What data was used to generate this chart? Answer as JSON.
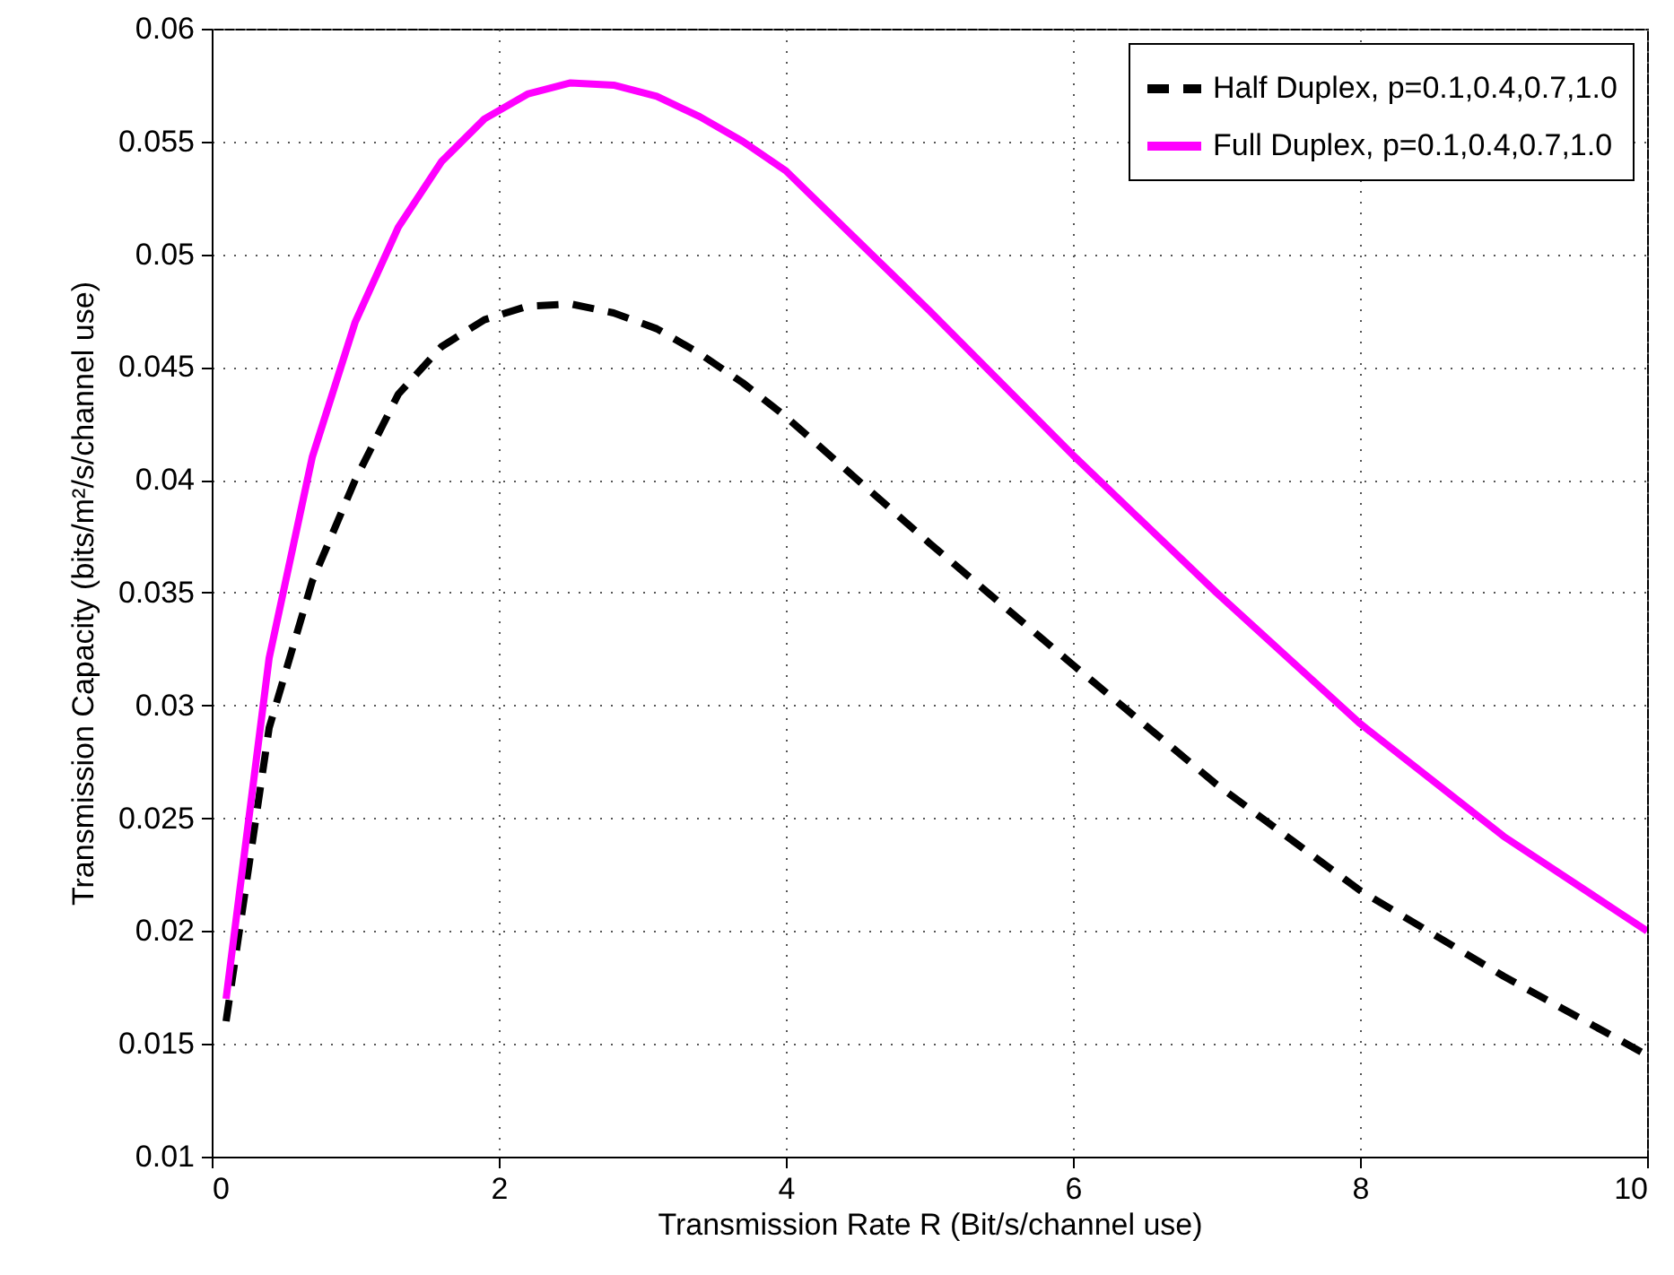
{
  "chart_data": {
    "type": "line",
    "xlabel": "Transmission Rate R (Bit/s/channel use)",
    "ylabel": "Transmission Capacity (bits/m²/s/channel use)",
    "x": [
      0.1,
      0.4,
      0.7,
      1.0,
      1.3,
      1.6,
      1.9,
      2.2,
      2.5,
      2.8,
      3.1,
      3.4,
      3.7,
      4,
      5,
      6,
      7,
      8,
      9,
      10
    ],
    "series": [
      {
        "name": "Half Duplex, p=0.1,0.4,0.7,1.0",
        "color": "#000000",
        "line_style": "dashed",
        "values": [
          0.016,
          0.029,
          0.0355,
          0.04,
          0.0438,
          0.0459,
          0.0471,
          0.0477,
          0.0478,
          0.0474,
          0.0467,
          0.0456,
          0.0443,
          0.0428,
          0.0372,
          0.0318,
          0.0265,
          0.0218,
          0.018,
          0.0145
        ]
      },
      {
        "name": "Full Duplex, p=0.1,0.4,0.7,1.0",
        "color": "#ff00ff",
        "line_style": "solid",
        "values": [
          0.017,
          0.0321,
          0.041,
          0.047,
          0.0512,
          0.0541,
          0.056,
          0.0571,
          0.0576,
          0.0575,
          0.057,
          0.0561,
          0.055,
          0.0537,
          0.0475,
          0.0411,
          0.035,
          0.0292,
          0.0242,
          0.02
        ]
      }
    ],
    "xlim": [
      0,
      10
    ],
    "xticks": [
      0,
      2,
      4,
      6,
      8,
      10
    ],
    "ylim": [
      0.01,
      0.06
    ],
    "yticks": [
      0.01,
      0.015,
      0.02,
      0.025,
      0.03,
      0.035,
      0.04,
      0.045,
      0.05,
      0.055,
      0.06
    ],
    "grid": true,
    "legend": "top right"
  }
}
